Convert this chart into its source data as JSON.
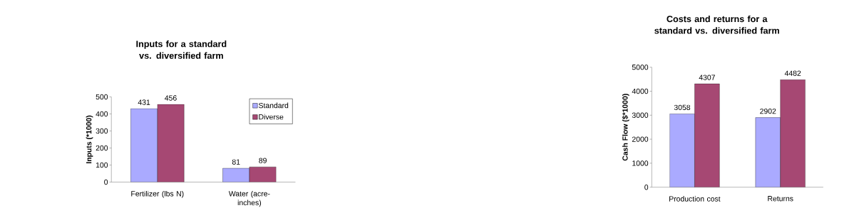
{
  "chart_data": [
    {
      "type": "bar",
      "title": "Inputs for a standard vs. diversified farm",
      "ylabel": "Inputs (*1000)",
      "categories": [
        "Fertilizer (lbs N)",
        "Water (acre-inches)"
      ],
      "series": [
        {
          "name": "Standard",
          "color": "#aaaaff",
          "values": [
            431,
            81
          ]
        },
        {
          "name": "Diverse",
          "color": "#a64873",
          "values": [
            456,
            89
          ]
        }
      ],
      "ylim": [
        0,
        500
      ],
      "yticks": [
        0,
        100,
        200,
        300,
        400,
        500
      ],
      "data_labels": true,
      "legend": "top right"
    },
    {
      "type": "bar",
      "title": "Costs and returns for a standard vs. diversified farm",
      "ylabel": "Cash Flow ($*1000)",
      "categories": [
        "Production cost",
        "Returns"
      ],
      "series": [
        {
          "color": "#aaaaff",
          "values": [
            3058,
            2902
          ]
        },
        {
          "color": "#a64873",
          "values": [
            4307,
            4482
          ]
        }
      ],
      "ylim": [
        0,
        5000
      ],
      "yticks": [
        0,
        1000,
        2000,
        3000,
        4000,
        5000
      ],
      "data_labels": true
    }
  ]
}
